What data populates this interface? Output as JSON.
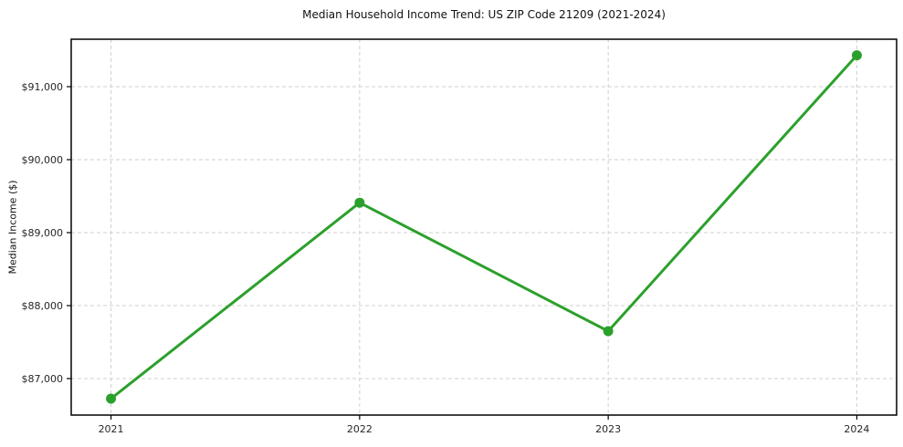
{
  "chart_data": {
    "type": "line",
    "title": "Median Household Income Trend: US ZIP Code 21209 (2021-2024)",
    "xlabel": "",
    "ylabel": "Median Income ($)",
    "x": [
      2021,
      2022,
      2023,
      2024
    ],
    "series": [
      {
        "name": "Median Household Income",
        "values": [
          86725,
          89410,
          87650,
          91430
        ]
      }
    ],
    "x_ticks": [
      2021,
      2022,
      2023,
      2024
    ],
    "x_tick_labels": [
      "2021",
      "2022",
      "2023",
      "2024"
    ],
    "y_ticks": [
      87000,
      88000,
      89000,
      90000,
      91000
    ],
    "y_tick_labels": [
      "$87,000",
      "$88,000",
      "$89,000",
      "$90,000",
      "$91,000"
    ],
    "xlim": [
      2020.84,
      2024.16
    ],
    "ylim": [
      86500,
      91650
    ],
    "grid": true,
    "legend": "none",
    "line_color": "#2ca02c",
    "marker_color": "#2ca02c",
    "marker_style": "circle",
    "grid_color": "#cfcfcf",
    "axis_color": "#000000",
    "tick_label_color": "#262626",
    "background": "#ffffff"
  }
}
